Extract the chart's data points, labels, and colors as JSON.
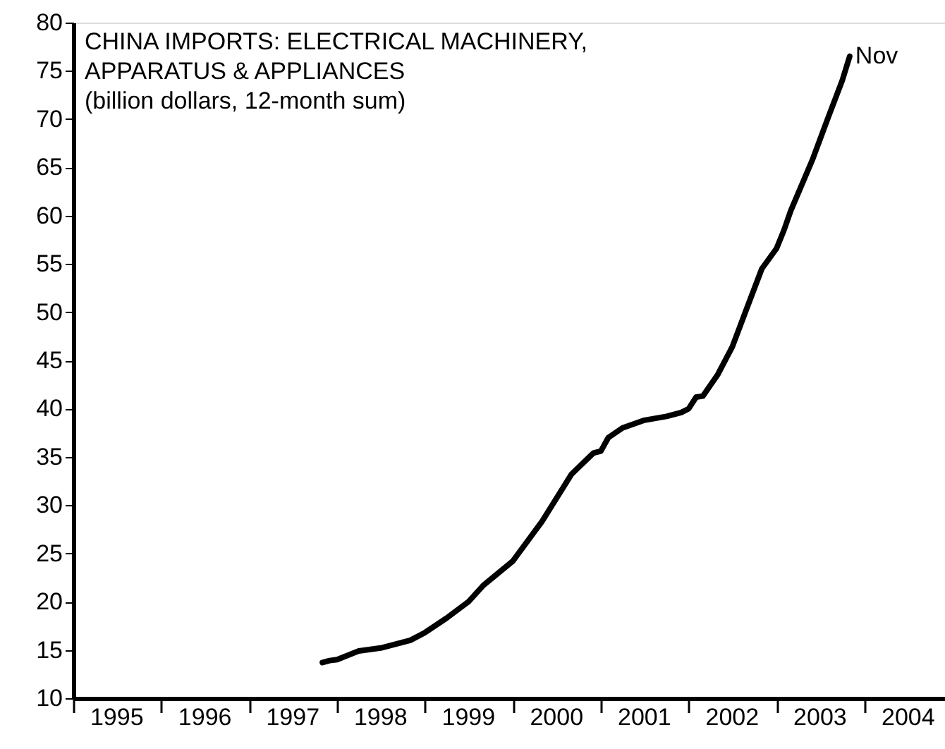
{
  "chart_data": {
    "type": "line",
    "title": "CHINA IMPORTS: ELECTRICAL MACHINERY, APPARATUS & APPLIANCES",
    "subtitle": "(billion dollars, 12-month sum)",
    "x": [
      "1997-11",
      "1997-12",
      "1998-01",
      "1998-04",
      "1998-07",
      "1998-11",
      "1999-01",
      "1999-04",
      "1999-07",
      "1999-09",
      "2000-01",
      "2000-05",
      "2000-09",
      "2000-12",
      "2001-01",
      "2001-02",
      "2001-04",
      "2001-07",
      "2001-10",
      "2001-12",
      "2002-01",
      "2002-02",
      "2002-03",
      "2002-05",
      "2002-07",
      "2002-09",
      "2002-11",
      "2003-01",
      "2003-02",
      "2003-03",
      "2003-06",
      "2003-08",
      "2003-10",
      "2003-11"
    ],
    "series": [
      {
        "color": "#000000",
        "values": [
          13.7,
          13.9,
          14.0,
          14.9,
          15.2,
          16.0,
          16.8,
          18.3,
          20.0,
          21.7,
          24.2,
          28.3,
          33.2,
          35.4,
          35.6,
          37.0,
          38.0,
          38.8,
          39.2,
          39.6,
          40.0,
          41.2,
          41.3,
          43.5,
          46.4,
          50.5,
          54.5,
          56.6,
          58.5,
          60.5,
          65.9,
          70.0,
          74.0,
          76.5
        ]
      }
    ],
    "xlim": [
      "1995-01",
      "2004-12"
    ],
    "xticks": [
      {
        "value": "1995-01",
        "label": null
      },
      {
        "value": "1995-07",
        "label": "1995"
      },
      {
        "value": "1996-01",
        "label": null
      },
      {
        "value": "1996-07",
        "label": "1996"
      },
      {
        "value": "1997-01",
        "label": null
      },
      {
        "value": "1997-07",
        "label": "1997"
      },
      {
        "value": "1998-01",
        "label": null
      },
      {
        "value": "1998-07",
        "label": "1998"
      },
      {
        "value": "1999-01",
        "label": null
      },
      {
        "value": "1999-07",
        "label": "1999"
      },
      {
        "value": "2000-01",
        "label": null
      },
      {
        "value": "2000-07",
        "label": "2000"
      },
      {
        "value": "2001-01",
        "label": null
      },
      {
        "value": "2001-07",
        "label": "2001"
      },
      {
        "value": "2002-01",
        "label": null
      },
      {
        "value": "2002-07",
        "label": "2002"
      },
      {
        "value": "2003-01",
        "label": null
      },
      {
        "value": "2003-07",
        "label": "2003"
      },
      {
        "value": "2004-01",
        "label": null
      },
      {
        "value": "2004-07",
        "label": "2004"
      }
    ],
    "ylim": [
      10,
      80
    ],
    "yticks": [
      10,
      15,
      20,
      25,
      30,
      35,
      40,
      45,
      50,
      55,
      60,
      65,
      70,
      75,
      80
    ],
    "annotations": [
      {
        "text": "Nov",
        "x": "2003-11",
        "y": 76.5
      }
    ],
    "grid": false,
    "marker": "none",
    "line_style": "solid"
  }
}
